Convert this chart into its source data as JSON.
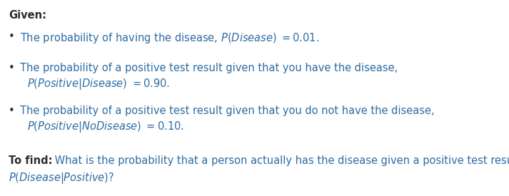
{
  "background_color": "#ffffff",
  "black": "#2d2d2d",
  "blue": "#2e6da4",
  "figsize": [
    7.13,
    2.75
  ],
  "dpi": 100,
  "given_label": "Given:",
  "bullet1_line1": "The probability of having the disease, ",
  "bullet1_math": "$\\mathit{P}(\\mathit{Disease})$",
  "bullet1_eq": " $= 0.01.$",
  "bullet2_line1": "The probability of a positive test result given that you have the disease,",
  "bullet2_math": "$\\mathit{P}(\\mathit{Positive}|\\mathit{Disease})$",
  "bullet2_eq": " $= 0.90.$",
  "bullet3_line1": "The probability of a positive test result given that you do not have the disease,",
  "bullet3_math": "$\\mathit{P}(\\mathit{Positive}|\\mathit{NoDisease})$",
  "bullet3_eq": " $= 0.10.$",
  "tofind_bold": "To find:",
  "tofind_rest": " What is the probability that a person actually has the disease given a positive test result,",
  "tofind_math": "$\\mathit{P}(\\mathit{Disease}|\\mathit{Positive})$",
  "tofind_suffix": "?",
  "fs": 10.5,
  "fs_bold": 10.5
}
